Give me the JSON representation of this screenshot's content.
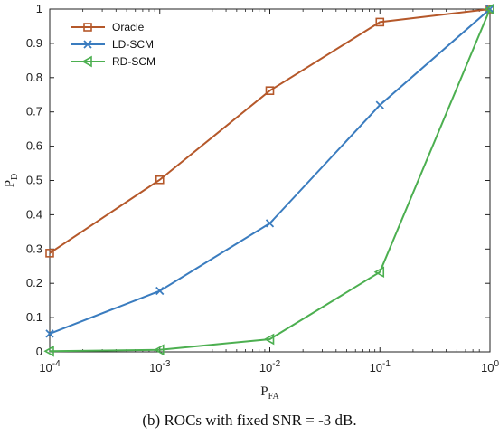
{
  "caption": "(b) ROCs with fixed SNR = -3 dB.",
  "chart_data": {
    "type": "line",
    "x_scale": "log",
    "x": [
      0.0001,
      0.001,
      0.01,
      0.1,
      1
    ],
    "xlim": [
      0.0001,
      1
    ],
    "ylim": [
      0,
      1
    ],
    "x_ticks": [
      {
        "base": "10",
        "exp": "-4",
        "value": 0.0001
      },
      {
        "base": "10",
        "exp": "-3",
        "value": 0.001
      },
      {
        "base": "10",
        "exp": "-2",
        "value": 0.01
      },
      {
        "base": "10",
        "exp": "-1",
        "value": 0.1
      },
      {
        "base": "10",
        "exp": "0",
        "value": 1
      }
    ],
    "y_ticks": [
      "0",
      "0.1",
      "0.2",
      "0.3",
      "0.4",
      "0.5",
      "0.6",
      "0.7",
      "0.8",
      "0.9",
      "1"
    ],
    "xlabel": {
      "main": "P",
      "sub": "FA"
    },
    "ylabel": {
      "main": "P",
      "sub": "D"
    },
    "grid": false,
    "legend_position": "top-left",
    "series": [
      {
        "name": "Oracle",
        "color": "#b5582a",
        "marker": "square",
        "values": [
          0.288,
          0.502,
          0.762,
          0.962,
          1.0
        ]
      },
      {
        "name": "LD-SCM",
        "color": "#3a7cbf",
        "marker": "x",
        "values": [
          0.053,
          0.178,
          0.375,
          0.72,
          1.0
        ]
      },
      {
        "name": "RD-SCM",
        "color": "#4caf50",
        "marker": "triangle-left",
        "values": [
          0.002,
          0.006,
          0.037,
          0.233,
          1.0
        ]
      }
    ]
  }
}
